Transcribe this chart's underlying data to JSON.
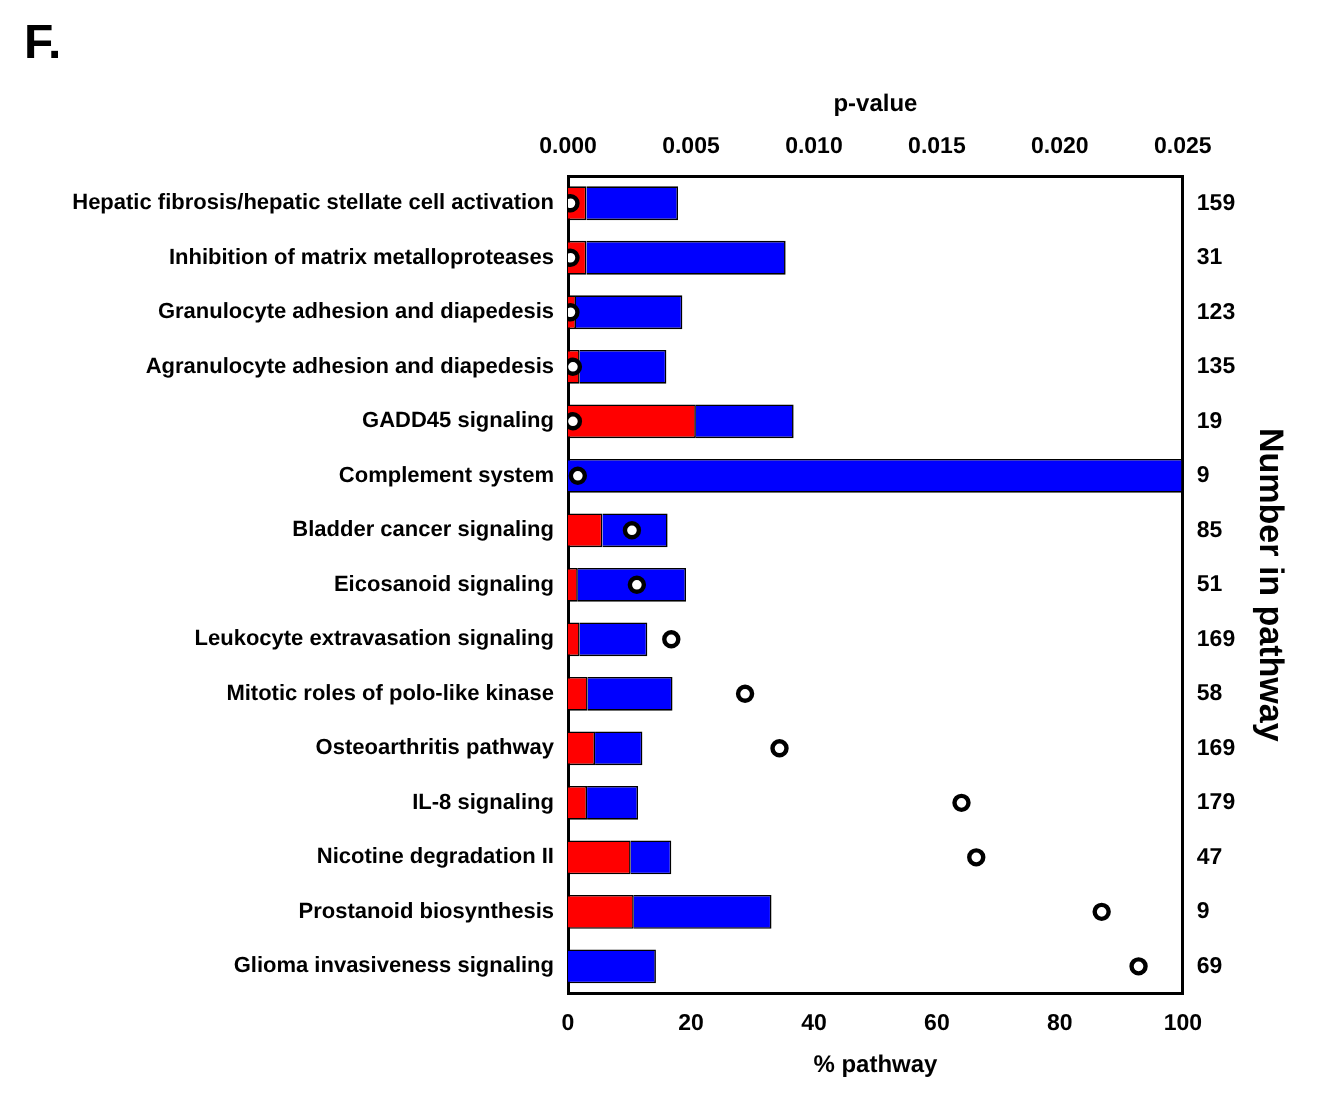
{
  "chart_data": {
    "type": "bar",
    "title": "F.",
    "orientation": "horizontal",
    "stacked": true,
    "categories": [
      "Hepatic fibrosis/hepatic stellate cell activation",
      "Inhibition of matrix metalloproteases",
      "Granulocyte adhesion and diapedesis",
      "Agranulocyte adhesion and diapedesis",
      "GADD45 signaling",
      "Complement system",
      "Bladder cancer signaling",
      "Eicosanoid signaling",
      "Leukocyte extravasation signaling",
      "Mitotic roles of polo-like kinase",
      "Osteoarthritis pathway",
      "IL-8 signaling",
      "Nicotine degradation II",
      "Prostanoid biosynthesis",
      "Glioma invasiveness signaling"
    ],
    "y2_categories": [
      "159",
      "31",
      "123",
      "135",
      "19",
      "9",
      "85",
      "51",
      "169",
      "58",
      "169",
      "179",
      "47",
      "9",
      "69"
    ],
    "series": [
      {
        "color": "#ff0000",
        "values": [
          3,
          3,
          1.3,
          1.9,
          20.8,
          0,
          5.6,
          1.6,
          1.9,
          3.2,
          4.4,
          3.1,
          10.2,
          10.7,
          0
        ]
      },
      {
        "color": "#0000ff",
        "values": [
          14.9,
          32.4,
          17.3,
          14.1,
          15.9,
          100,
          10.6,
          17.6,
          11,
          13.8,
          7.7,
          8.3,
          6.6,
          22.4,
          14.3
        ]
      },
      {
        "type": "scatter",
        "axis": "x2",
        "color": "#ffffff",
        "values": [
          0.0001,
          0.0001,
          0.0001,
          0.0002,
          0.0002,
          0.0004,
          0.0026,
          0.0028,
          0.0042,
          0.0072,
          0.0086,
          0.016,
          0.0166,
          0.0217,
          0.0232
        ]
      }
    ],
    "xlabel": "% pathway",
    "x2label": "p-value",
    "y2label": "Number in pathway",
    "xlim": [
      0,
      100
    ],
    "xticks": [
      0,
      20,
      40,
      60,
      80,
      100
    ],
    "x2lim": [
      0,
      0.025
    ],
    "x2ticks": [
      {
        "value": 0,
        "label": "0.000"
      },
      {
        "value": 0.005,
        "label": "0.005"
      },
      {
        "value": 0.01,
        "label": "0.010"
      },
      {
        "value": 0.015,
        "label": "0.015"
      },
      {
        "value": 0.02,
        "label": "0.020"
      },
      {
        "value": 0.025,
        "label": "0.025"
      }
    ],
    "marker": "circle",
    "grid": false,
    "legend": false
  }
}
